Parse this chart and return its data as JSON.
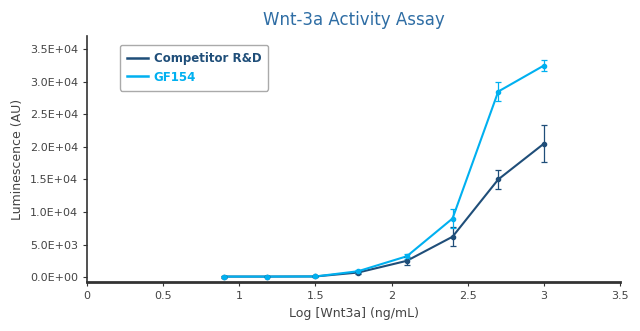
{
  "title": "Wnt-3a Activity Assay",
  "title_color": "#2E6DA4",
  "xlabel": "Log [Wnt3a] (ng/mL)",
  "ylabel": "Luminescence (AU)",
  "xlim": [
    0,
    3.5
  ],
  "ylim": [
    -800,
    37000
  ],
  "xticks": [
    0,
    0.5,
    1.0,
    1.5,
    2.0,
    2.5,
    3.0,
    3.5
  ],
  "yticks": [
    0,
    5000,
    10000,
    15000,
    20000,
    25000,
    30000,
    35000
  ],
  "competitor_color": "#1F4E79",
  "gf154_color": "#00B0F0",
  "competitor_label": "Competitor R&D",
  "gf154_label": "GF154",
  "competitor_x": [
    0.9,
    1.18,
    1.5,
    1.78,
    2.1,
    2.4,
    2.7,
    3.0
  ],
  "competitor_y": [
    80,
    80,
    100,
    700,
    2500,
    6200,
    15000,
    20500
  ],
  "competitor_yerr": [
    150,
    80,
    100,
    150,
    600,
    1500,
    1400,
    2800
  ],
  "gf154_x": [
    0.9,
    1.18,
    1.5,
    1.78,
    2.1,
    2.4,
    2.7,
    3.0
  ],
  "gf154_y": [
    80,
    80,
    100,
    900,
    3200,
    9000,
    28500,
    32500
  ],
  "gf154_yerr": [
    120,
    80,
    100,
    200,
    400,
    1500,
    1500,
    900
  ],
  "background_color": "#FFFFFF",
  "legend_fontsize": 8.5,
  "axis_label_fontsize": 9,
  "title_fontsize": 12
}
